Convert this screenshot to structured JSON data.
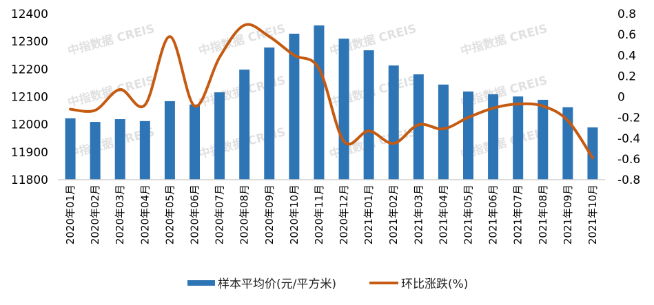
{
  "chart_data": {
    "type": "bar+line",
    "categories": [
      "2020年01月",
      "2020年02月",
      "2020年03月",
      "2020年04月",
      "2020年05月",
      "2020年06月",
      "2020年07月",
      "2020年08月",
      "2020年09月",
      "2020年10月",
      "2020年11月",
      "2020年12月",
      "2021年01月",
      "2021年02月",
      "2021年03月",
      "2021年04月",
      "2021年05月",
      "2021年06月",
      "2021年07月",
      "2021年08月",
      "2021年09月",
      "2021年10月"
    ],
    "series": [
      {
        "name": "样本平均价(元/平方米)",
        "type": "bar",
        "axis": "left",
        "color": "#2e75b6",
        "values": [
          12022,
          12009,
          12019,
          12012,
          12084,
          12072,
          12116,
          12198,
          12278,
          12328,
          12358,
          12310,
          12268,
          12213,
          12181,
          12144,
          12119,
          12109,
          12101,
          12089,
          12062,
          11989
        ]
      },
      {
        "name": "环比涨跌(%)",
        "type": "line",
        "smooth": true,
        "axis": "right",
        "color": "#c55a11",
        "values": [
          -0.12,
          -0.13,
          0.07,
          -0.08,
          0.58,
          -0.09,
          0.38,
          0.69,
          0.58,
          0.4,
          0.27,
          -0.43,
          -0.33,
          -0.45,
          -0.27,
          -0.31,
          -0.2,
          -0.11,
          -0.07,
          -0.09,
          -0.23,
          -0.59
        ]
      }
    ],
    "y_left": {
      "range": [
        11800,
        12400
      ],
      "ticks": [
        "11800",
        "11900",
        "12000",
        "12100",
        "12200",
        "12300",
        "12400"
      ]
    },
    "y_right": {
      "range": [
        -0.8,
        0.8
      ],
      "ticks": [
        "-0.8",
        "-0.6",
        "-0.4",
        "-0.2",
        "0",
        "0.2",
        "0.4",
        "0.6",
        "0.8"
      ]
    },
    "grid": false,
    "legend": "bottom",
    "watermark": "中指数据 CREIS"
  }
}
